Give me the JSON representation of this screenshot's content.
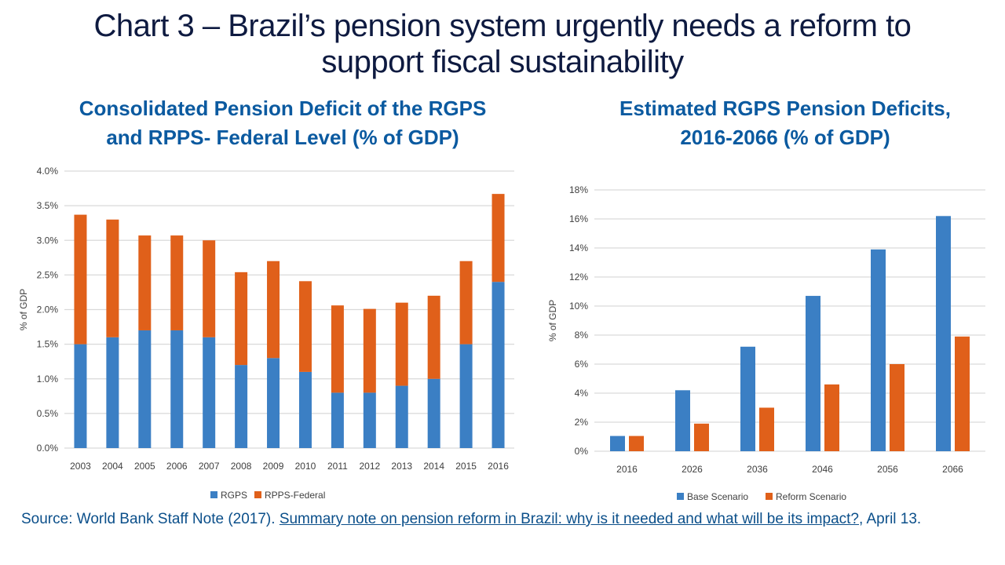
{
  "title": "Chart 3 – Brazil’s pension system urgently needs a reform to support fiscal sustainability",
  "title_line1": "Chart 3 – Brazil’s pension system urgently needs a reform to",
  "title_line2": "support fiscal sustainability",
  "colors": {
    "blue": "#3b7fc4",
    "orange": "#e0601a",
    "grid": "#d9d9d9"
  },
  "chart_data": [
    {
      "type": "bar",
      "stacked": true,
      "title_line1": "Consolidated Pension Deficit of the RGPS",
      "title_line2": "and RPPS- Federal Level (% of GDP)",
      "xlabel": "",
      "ylabel": "% of GDP",
      "ylim": [
        0,
        4.0
      ],
      "yticks": [
        "0.0%",
        "0.5%",
        "1.0%",
        "1.5%",
        "2.0%",
        "2.5%",
        "3.0%",
        "3.5%",
        "4.0%"
      ],
      "grid": true,
      "legend": "bottom",
      "categories": [
        "2003",
        "2004",
        "2005",
        "2006",
        "2007",
        "2008",
        "2009",
        "2010",
        "2011",
        "2012",
        "2013",
        "2014",
        "2015",
        "2016"
      ],
      "series": [
        {
          "name": "RGPS",
          "values": [
            1.5,
            1.6,
            1.7,
            1.7,
            1.6,
            1.2,
            1.3,
            1.1,
            0.8,
            0.8,
            0.9,
            1.0,
            1.5,
            2.4
          ]
        },
        {
          "name": "RPPS-Federal",
          "values": [
            1.87,
            1.7,
            1.37,
            1.37,
            1.4,
            1.34,
            1.4,
            1.31,
            1.26,
            1.21,
            1.2,
            1.2,
            1.2,
            1.27
          ]
        }
      ]
    },
    {
      "type": "bar",
      "stacked": false,
      "title_line1": "Estimated RGPS Pension Deficits,",
      "title_line2": "2016-2066 (% of GDP)",
      "xlabel": "",
      "ylabel": "% of GDP",
      "ylim": [
        0,
        18
      ],
      "yticks": [
        "0%",
        "2%",
        "4%",
        "6%",
        "8%",
        "10%",
        "12%",
        "14%",
        "16%",
        "18%"
      ],
      "grid": true,
      "legend": "bottom",
      "categories": [
        "2016",
        "2026",
        "2036",
        "2046",
        "2056",
        "2066"
      ],
      "series": [
        {
          "name": "Base Scenario",
          "values": [
            1.05,
            4.2,
            7.2,
            10.7,
            13.9,
            16.2
          ]
        },
        {
          "name": "Reform Scenario",
          "values": [
            1.05,
            1.9,
            3.0,
            4.6,
            6.0,
            7.9
          ]
        }
      ]
    }
  ],
  "source": {
    "prefix": "Source: World Bank Staff Note (2017). ",
    "link_text": "Summary note on pension reform in Brazil: why is it needed and what will be its impact?",
    "suffix": ", April 13."
  }
}
